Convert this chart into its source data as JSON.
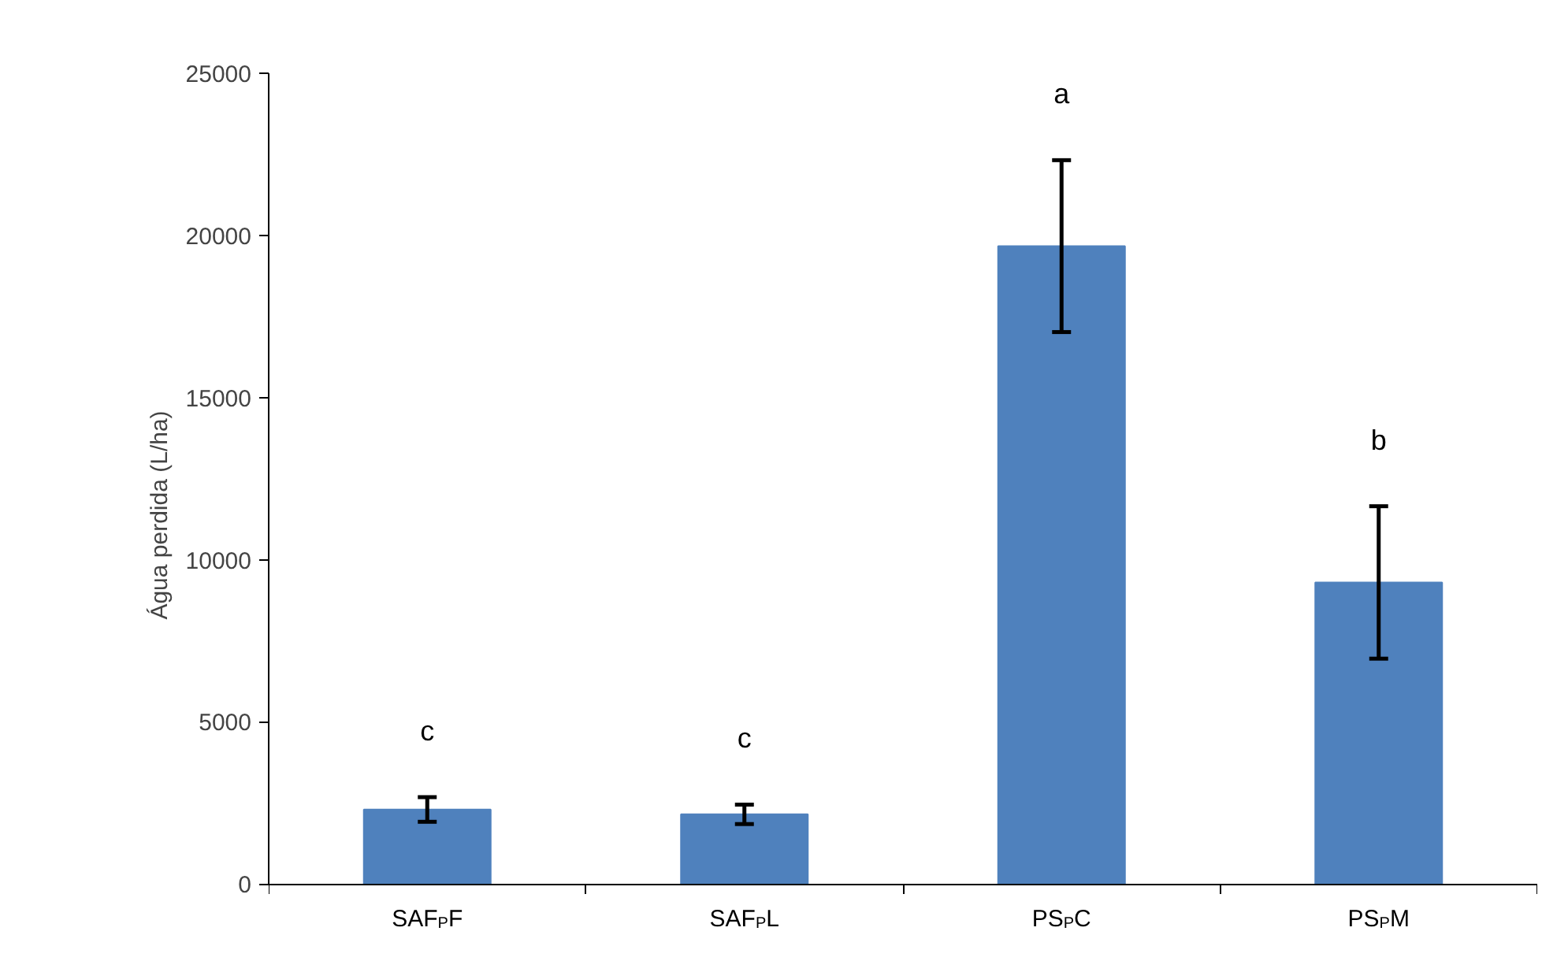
{
  "chart_data": {
    "type": "bar",
    "ylabel": "Água perdida (L/ha)",
    "categories": [
      "SAF$_{P}$F",
      "SAF$_{P}$L",
      "PS$_{P}$C",
      "PS$_{P}$M"
    ],
    "values": [
      2300,
      2150,
      19670,
      9300
    ],
    "errors": [
      380,
      300,
      2650,
      2350
    ],
    "color": "#4f81bd",
    "ylim": [
      0,
      25000
    ],
    "yticks": [
      0,
      5000,
      10000,
      15000,
      20000,
      25000
    ],
    "annotations": [
      "c",
      "c",
      "a",
      "b"
    ]
  }
}
